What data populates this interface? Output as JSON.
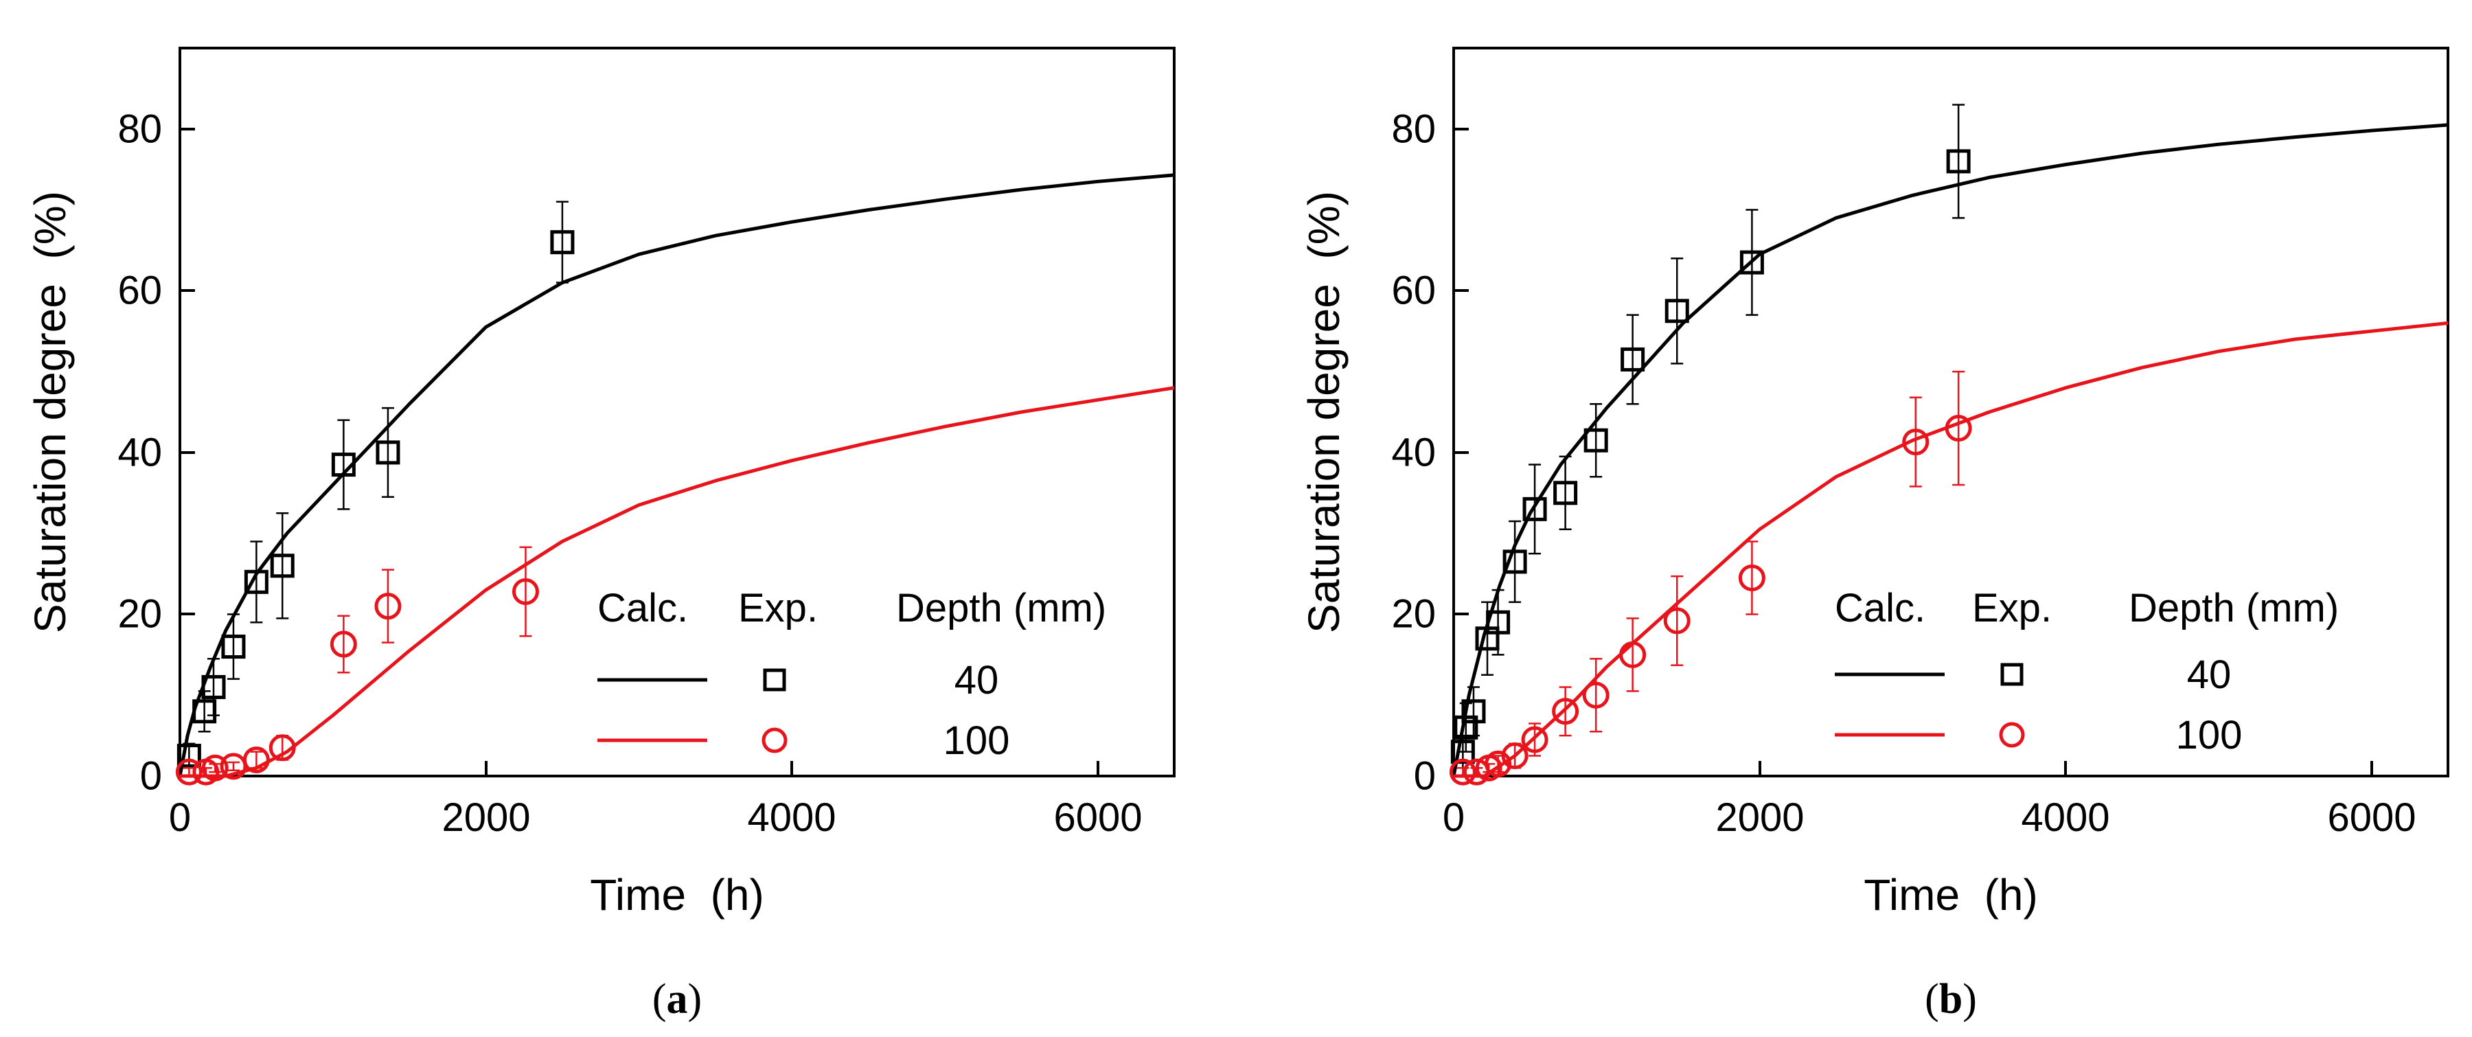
{
  "chart_data": [
    {
      "type": "scatter",
      "panel": "a",
      "caption_letter": "a",
      "xlabel": "Time  (h)",
      "ylabel": "Saturation degree  (%)",
      "xlim": [
        0,
        6500
      ],
      "ylim": [
        0,
        90
      ],
      "xticks": [
        0,
        2000,
        4000,
        6000
      ],
      "yticks": [
        0,
        20,
        40,
        60,
        80
      ],
      "legend_headers": {
        "calc": "Calc.",
        "exp": "Exp.",
        "depth": "Depth (mm)"
      },
      "series": [
        {
          "name": "40",
          "color": "#000000",
          "marker": "square",
          "points": [
            [
              60,
              2.5
            ],
            [
              160,
              8
            ],
            [
              220,
              11
            ],
            [
              350,
              16
            ],
            [
              500,
              24
            ],
            [
              670,
              26
            ],
            [
              1070,
              38.5
            ],
            [
              1360,
              40
            ],
            [
              2500,
              66
            ]
          ],
          "errors": [
            [
              60,
              1.5
            ],
            [
              160,
              2.5
            ],
            [
              220,
              3.5
            ],
            [
              350,
              4
            ],
            [
              500,
              5
            ],
            [
              670,
              6.5
            ],
            [
              1070,
              5.5
            ],
            [
              1360,
              5.5
            ],
            [
              2500,
              5
            ]
          ],
          "curve": [
            [
              0,
              0
            ],
            [
              50,
              5
            ],
            [
              100,
              8.5
            ],
            [
              200,
              13.5
            ],
            [
              300,
              18
            ],
            [
              400,
              21.5
            ],
            [
              500,
              25
            ],
            [
              700,
              30
            ],
            [
              1000,
              36
            ],
            [
              1500,
              46
            ],
            [
              2000,
              55.5
            ],
            [
              2500,
              61
            ],
            [
              3000,
              64.5
            ],
            [
              3500,
              66.8
            ],
            [
              4000,
              68.5
            ],
            [
              4500,
              70
            ],
            [
              5000,
              71.3
            ],
            [
              5500,
              72.5
            ],
            [
              6000,
              73.5
            ],
            [
              6500,
              74.3
            ]
          ]
        },
        {
          "name": "100",
          "color": "#e8141b",
          "marker": "circle",
          "points": [
            [
              60,
              0.5
            ],
            [
              170,
              0.5
            ],
            [
              230,
              1
            ],
            [
              350,
              1.2
            ],
            [
              500,
              2
            ],
            [
              670,
              3.5
            ],
            [
              1070,
              16.3
            ],
            [
              1360,
              21
            ],
            [
              2260,
              22.8
            ]
          ],
          "errors": [
            [
              60,
              0.5
            ],
            [
              170,
              0.5
            ],
            [
              230,
              0.5
            ],
            [
              350,
              0.5
            ],
            [
              500,
              1
            ],
            [
              670,
              1.5
            ],
            [
              1070,
              3.5
            ],
            [
              1360,
              4.5
            ],
            [
              2260,
              5.5
            ]
          ],
          "curve": [
            [
              0,
              0
            ],
            [
              300,
              0
            ],
            [
              500,
              1
            ],
            [
              700,
              3
            ],
            [
              1000,
              7.5
            ],
            [
              1500,
              15.5
            ],
            [
              2000,
              23
            ],
            [
              2500,
              29
            ],
            [
              3000,
              33.5
            ],
            [
              3500,
              36.5
            ],
            [
              4000,
              39
            ],
            [
              4500,
              41.2
            ],
            [
              5000,
              43.2
            ],
            [
              5500,
              45
            ],
            [
              6000,
              46.5
            ],
            [
              6500,
              48
            ]
          ]
        }
      ]
    },
    {
      "type": "scatter",
      "panel": "b",
      "caption_letter": "b",
      "xlabel": "Time  (h)",
      "ylabel": "Saturation degree  (%)",
      "xlim": [
        0,
        6500
      ],
      "ylim": [
        0,
        90
      ],
      "xticks": [
        0,
        2000,
        4000,
        6000
      ],
      "yticks": [
        0,
        20,
        40,
        60,
        80
      ],
      "legend_headers": {
        "calc": "Calc.",
        "exp": "Exp.",
        "depth": "Depth (mm)"
      },
      "series": [
        {
          "name": "40",
          "color": "#000000",
          "marker": "square",
          "points": [
            [
              60,
              3
            ],
            [
              80,
              6
            ],
            [
              130,
              8
            ],
            [
              220,
              17
            ],
            [
              290,
              19
            ],
            [
              400,
              26.5
            ],
            [
              530,
              33
            ],
            [
              730,
              35
            ],
            [
              930,
              41.5
            ],
            [
              1170,
              51.5
            ],
            [
              1460,
              57.5
            ],
            [
              1950,
              63.5
            ],
            [
              3300,
              76
            ]
          ],
          "errors": [
            [
              60,
              2
            ],
            [
              80,
              3
            ],
            [
              130,
              3
            ],
            [
              220,
              4.5
            ],
            [
              290,
              4
            ],
            [
              400,
              5
            ],
            [
              530,
              5.5
            ],
            [
              730,
              4.5
            ],
            [
              930,
              4.5
            ],
            [
              1170,
              5.5
            ],
            [
              1460,
              6.5
            ],
            [
              1950,
              6.5
            ],
            [
              3300,
              7
            ]
          ],
          "curve": [
            [
              0,
              0
            ],
            [
              50,
              5
            ],
            [
              100,
              10
            ],
            [
              200,
              17.5
            ],
            [
              300,
              23.5
            ],
            [
              400,
              28.5
            ],
            [
              500,
              32.5
            ],
            [
              700,
              38.5
            ],
            [
              1000,
              45.5
            ],
            [
              1500,
              56
            ],
            [
              2000,
              64.5
            ],
            [
              2500,
              69
            ],
            [
              3000,
              71.8
            ],
            [
              3500,
              74
            ],
            [
              4000,
              75.6
            ],
            [
              4500,
              77
            ],
            [
              5000,
              78.1
            ],
            [
              5500,
              79
            ],
            [
              6000,
              79.8
            ],
            [
              6500,
              80.5
            ]
          ]
        },
        {
          "name": "100",
          "color": "#e8141b",
          "marker": "circle",
          "points": [
            [
              60,
              0.5
            ],
            [
              150,
              0.5
            ],
            [
              230,
              1
            ],
            [
              290,
              1.5
            ],
            [
              400,
              2.5
            ],
            [
              530,
              4.5
            ],
            [
              730,
              8
            ],
            [
              930,
              10
            ],
            [
              1170,
              15
            ],
            [
              1460,
              19.2
            ],
            [
              1950,
              24.5
            ],
            [
              3020,
              41.3
            ],
            [
              3300,
              43
            ]
          ],
          "errors": [
            [
              60,
              0.5
            ],
            [
              150,
              0.5
            ],
            [
              230,
              0.5
            ],
            [
              290,
              1
            ],
            [
              400,
              1.5
            ],
            [
              530,
              2
            ],
            [
              730,
              3
            ],
            [
              930,
              4.5
            ],
            [
              1170,
              4.5
            ],
            [
              1460,
              5.5
            ],
            [
              1950,
              4.5
            ],
            [
              3020,
              5.5
            ],
            [
              3300,
              7
            ]
          ],
          "curve": [
            [
              0,
              0
            ],
            [
              200,
              0
            ],
            [
              400,
              2.5
            ],
            [
              600,
              6
            ],
            [
              800,
              9.5
            ],
            [
              1000,
              13.5
            ],
            [
              1500,
              22
            ],
            [
              2000,
              30.5
            ],
            [
              2500,
              37
            ],
            [
              3000,
              41.5
            ],
            [
              3500,
              45
            ],
            [
              4000,
              48
            ],
            [
              4500,
              50.5
            ],
            [
              5000,
              52.5
            ],
            [
              5500,
              54
            ],
            [
              6000,
              55
            ],
            [
              6500,
              56
            ]
          ]
        }
      ]
    }
  ]
}
